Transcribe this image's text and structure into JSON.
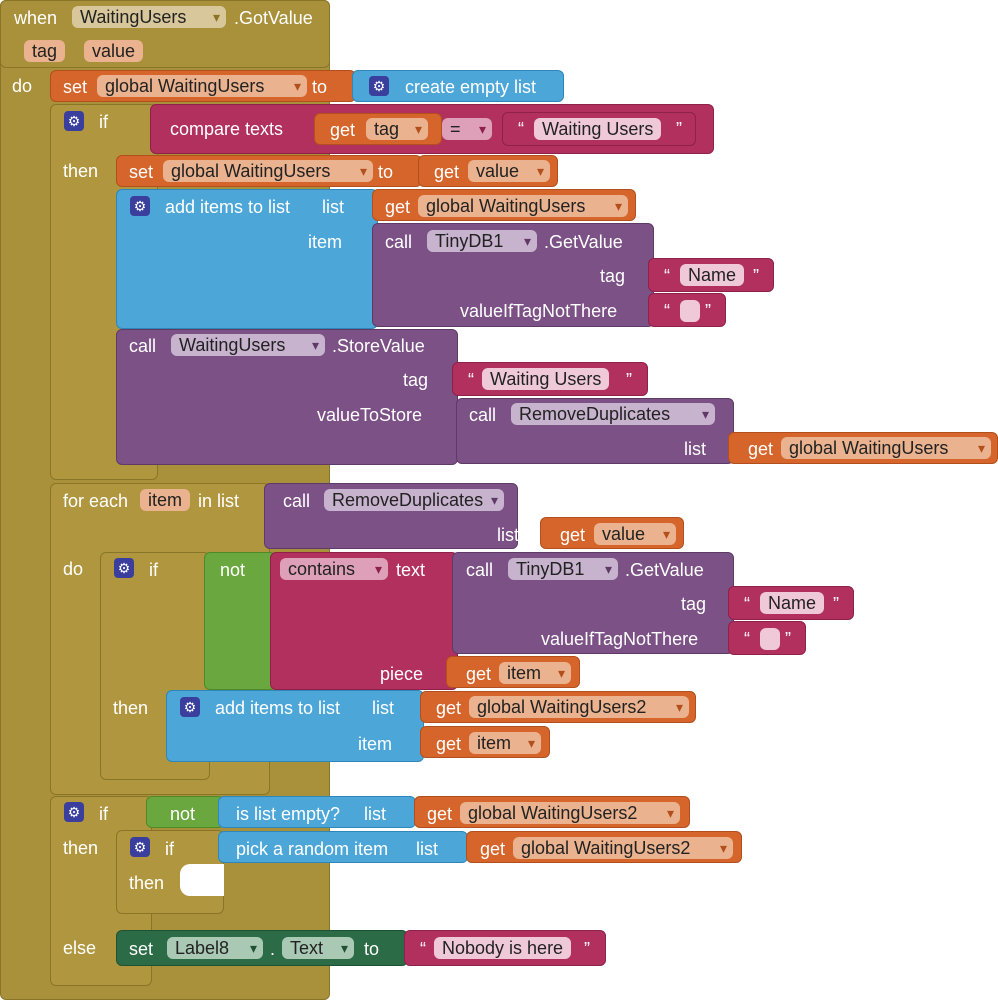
{
  "event": {
    "when": "when",
    "component": "WaitingUsers",
    "method": ".GotValue",
    "param_tag": "tag",
    "param_value": "value",
    "do": "do"
  },
  "kw": {
    "set": "set",
    "to": "to",
    "get": "get",
    "if": "if",
    "then": "then",
    "else": "else",
    "do": "do",
    "call": "call",
    "list": "list",
    "item": "item",
    "tag": "tag",
    "not": "not",
    "piece": "piece",
    "for_each": "for each",
    "in_list": "in list",
    "eq": "=",
    "dot": ".",
    "open_quote": "“",
    "close_quote": "”"
  },
  "blocks": {
    "global_waiting": "global WaitingUsers",
    "global_waiting2": "global WaitingUsers2",
    "create_empty": "create empty list",
    "compare_texts": "compare texts",
    "tag_var": "tag",
    "value_var": "value",
    "item_var": "item",
    "waiting_users_str": "Waiting Users",
    "add_items": "add items to list",
    "tinydb": "TinyDB1",
    "getvalue": ".GetValue",
    "name_str": "Name",
    "value_if_not": "valueIfTagNotThere",
    "waiting_comp": "WaitingUsers",
    "storevalue": ".StoreValue",
    "value_to_store": "valueToStore",
    "remove_dups": "RemoveDuplicates",
    "contains": "contains",
    "text": "text",
    "is_list_empty": "is list empty?",
    "pick_random": "pick a random item",
    "label8": "Label8",
    "text_prop": "Text",
    "nobody": "Nobody is here"
  },
  "colors": {
    "event": "#a8913a",
    "variable": "#d5652a",
    "list": "#4ca6d8",
    "text": "#b2305e",
    "component": "#7c5185",
    "logic": "#6aa83f",
    "label": "#2b6b46"
  }
}
